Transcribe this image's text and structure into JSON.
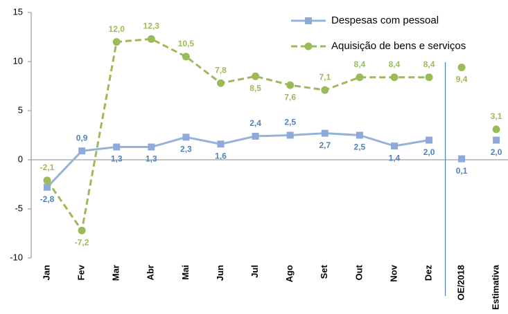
{
  "chart_data": {
    "type": "line",
    "categories": [
      "Jan",
      "Fev",
      "Mar",
      "Abr",
      "Mai",
      "Jun",
      "Jul",
      "Ago",
      "Set",
      "Out",
      "Nov",
      "Dez"
    ],
    "series": [
      {
        "name": "Despesas com pessoal",
        "color": "#95b3d7",
        "label_color": "#4f81bd",
        "dashed": false,
        "marker": "square",
        "values": [
          -2.8,
          0.9,
          1.3,
          1.3,
          2.3,
          1.6,
          2.4,
          2.5,
          2.7,
          2.5,
          1.4,
          2.0
        ],
        "value_labels": [
          "-2,8",
          "0,9",
          "1,3",
          "1,3",
          "2,3",
          "1,6",
          "2,4",
          "2,5",
          "2,7",
          "2,5",
          "1,4",
          "2,0"
        ]
      },
      {
        "name": "Aquisição de bens e serviços",
        "color": "#9bbb59",
        "label_color": "#9bbb59",
        "dashed": true,
        "marker": "circle",
        "values": [
          -2.1,
          -7.2,
          12.0,
          12.3,
          10.5,
          7.8,
          8.5,
          7.6,
          7.1,
          8.4,
          8.4,
          8.4
        ],
        "value_labels": [
          "-2,1",
          "-7,2",
          "12,0",
          "12,3",
          "10,5",
          "7,8",
          "8,5",
          "7,6",
          "7,1",
          "8,4",
          "8,4",
          "8,4"
        ]
      }
    ],
    "annual": {
      "categories": [
        "OE/2018",
        "Estimativa"
      ],
      "series": [
        {
          "values": [
            0.1,
            2.0
          ],
          "value_labels": [
            "0,1",
            "2,0"
          ]
        },
        {
          "values": [
            9.4,
            3.1
          ],
          "value_labels": [
            "9,4",
            "3,1"
          ]
        }
      ]
    },
    "ylim": [
      -10,
      15
    ],
    "yticks": [
      -10,
      -5,
      0,
      5,
      10,
      15
    ],
    "legend": "top-right"
  }
}
